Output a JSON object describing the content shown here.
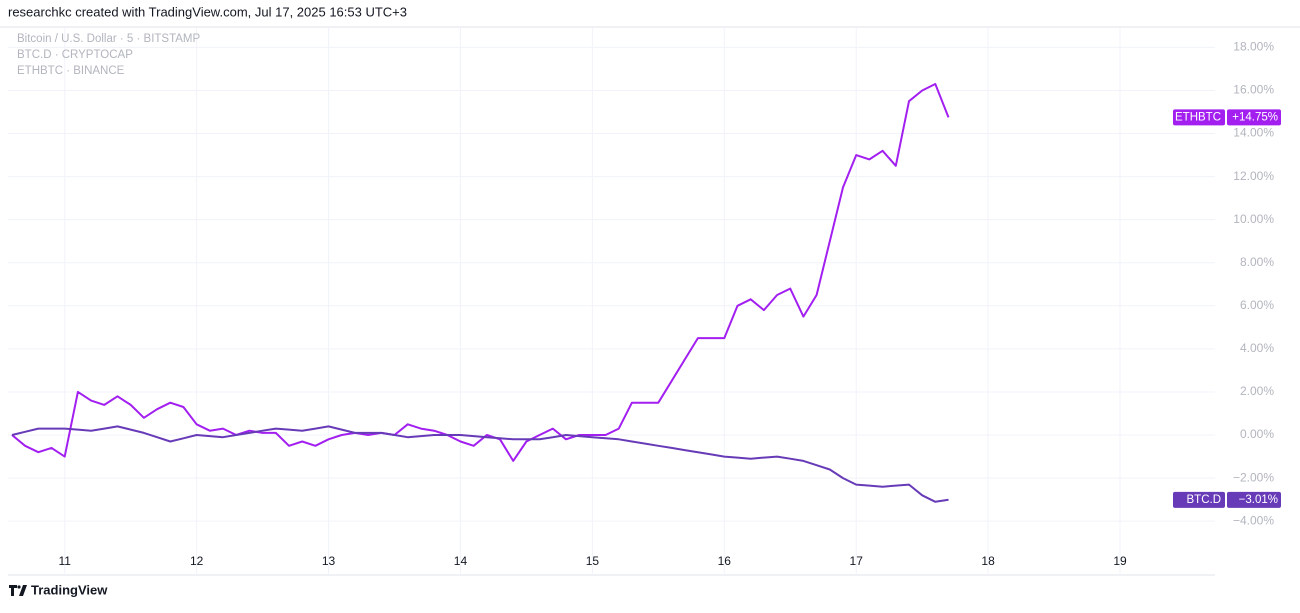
{
  "header": "researchkc created with TradingView.com, Jul 17, 2025 16:53 UTC+3",
  "footer": "TradingView",
  "chart_data": {
    "type": "line",
    "legend_items": [
      "Bitcoin / U.S. Dollar · 5 · BITSTAMP",
      "BTC.D · CRYPTOCAP",
      "ETHBTC · BINANCE"
    ],
    "x": [
      10.6,
      10.7,
      10.8,
      10.9,
      11.0,
      11.1,
      11.2,
      11.3,
      11.4,
      11.5,
      11.6,
      11.7,
      11.8,
      11.9,
      12.0,
      12.1,
      12.2,
      12.3,
      12.4,
      12.5,
      12.6,
      12.7,
      12.8,
      12.9,
      13.0,
      13.1,
      13.2,
      13.3,
      13.4,
      13.5,
      13.6,
      13.7,
      13.8,
      13.9,
      14.0,
      14.1,
      14.2,
      14.3,
      14.4,
      14.5,
      14.6,
      14.7,
      14.8,
      14.9,
      15.0,
      15.1,
      15.2,
      15.3,
      15.4,
      15.5,
      15.6,
      15.7,
      15.8,
      15.9,
      16.0,
      16.1,
      16.2,
      16.3,
      16.4,
      16.5,
      16.6,
      16.7,
      16.8,
      16.9,
      17.0,
      17.1,
      17.2,
      17.3,
      17.4,
      17.5,
      17.6,
      17.7
    ],
    "series": [
      {
        "name": "ETHBTC",
        "color": "#a21ff0",
        "last_value_label": "+14.75%",
        "values": [
          0,
          -0.5,
          -0.8,
          -0.6,
          -1.0,
          2.0,
          1.6,
          1.4,
          1.8,
          1.4,
          0.8,
          1.2,
          1.5,
          1.3,
          0.5,
          0.2,
          0.3,
          0,
          0.2,
          0.1,
          0.1,
          -0.5,
          -0.3,
          -0.5,
          -0.2,
          0,
          0.1,
          0,
          0.1,
          0,
          0.5,
          0.3,
          0.2,
          0,
          -0.3,
          -0.5,
          0,
          -0.2,
          -1.2,
          -0.3,
          0,
          0.3,
          -0.2,
          0,
          0,
          0,
          0.3,
          1.5,
          1.5,
          1.5,
          2.5,
          3.5,
          4.5,
          4.5,
          4.5,
          6.0,
          6.3,
          5.8,
          6.5,
          6.8,
          5.5,
          6.5,
          9.0,
          11.5,
          13.0,
          12.8,
          13.2,
          12.5,
          15.5,
          16.0,
          16.3,
          14.75
        ]
      },
      {
        "name": "BTC.D",
        "color": "#673ab7",
        "last_value_label": "−3.01%",
        "values": [
          0,
          0.15,
          0.3,
          0.3,
          0.3,
          0.25,
          0.2,
          0.3,
          0.4,
          0.25,
          0.1,
          -0.1,
          -0.3,
          -0.15,
          0,
          -0.05,
          -0.1,
          0,
          0.1,
          0.2,
          0.3,
          0.25,
          0.2,
          0.3,
          0.4,
          0.25,
          0.1,
          0.1,
          0.1,
          0,
          -0.1,
          -0.05,
          0,
          0,
          0,
          -0.05,
          -0.1,
          -0.15,
          -0.2,
          -0.2,
          -0.2,
          -0.1,
          0,
          -0.05,
          -0.1,
          -0.15,
          -0.2,
          -0.3,
          -0.4,
          -0.5,
          -0.6,
          -0.7,
          -0.8,
          -0.9,
          -1.0,
          -1.05,
          -1.1,
          -1.05,
          -1.0,
          -1.1,
          -1.2,
          -1.4,
          -1.6,
          -2.0,
          -2.3,
          -2.35,
          -2.4,
          -2.35,
          -2.3,
          -2.8,
          -3.1,
          -3.01
        ]
      }
    ],
    "xlim": [
      10.57,
      19.72
    ],
    "xticks": [
      11,
      12,
      13,
      14,
      15,
      16,
      17,
      18,
      19
    ],
    "ylim": [
      -6.5,
      18.9
    ],
    "yticks": [
      {
        "value": -4,
        "label": "−4.00%"
      },
      {
        "value": -2,
        "label": "−2.00%"
      },
      {
        "value": 0,
        "label": "0.00%"
      },
      {
        "value": 2,
        "label": "2.00%"
      },
      {
        "value": 4,
        "label": "4.00%"
      },
      {
        "value": 6,
        "label": "6.00%"
      },
      {
        "value": 8,
        "label": "8.00%"
      },
      {
        "value": 10,
        "label": "10.00%"
      },
      {
        "value": 12,
        "label": "12.00%"
      },
      {
        "value": 14,
        "label": "14.00%"
      },
      {
        "value": 16,
        "label": "16.00%"
      },
      {
        "value": 18,
        "label": "18.00%"
      }
    ],
    "grid": true
  }
}
